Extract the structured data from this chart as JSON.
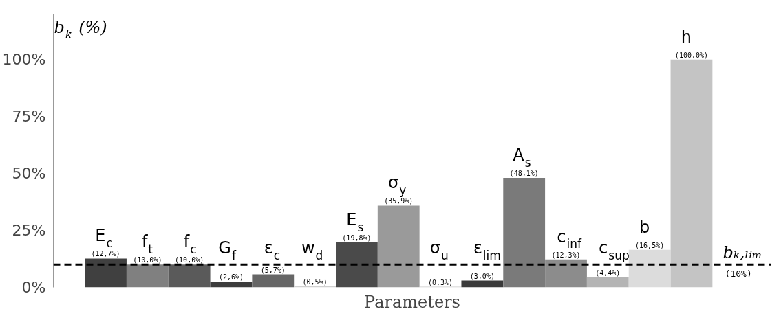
{
  "chart_data": {
    "type": "bar",
    "xlabel": "Parameters",
    "ylabel": "b$_{k}$ (%)",
    "categories": [
      "E$_{c}$",
      "f$_{t}$",
      "f$_{c}$",
      "G$_{f}$",
      "ε$_{c}$",
      "w$_{d}$",
      "E$_{s}$",
      "σ$_{y}$",
      "σ$_{u}$",
      "ε$_{lim}$",
      "A$_{s}$",
      "c$_{inf}$",
      "c$_{sup}$",
      "b",
      "h"
    ],
    "values": [
      12.7,
      10.0,
      10.0,
      2.6,
      5.7,
      0.5,
      19.8,
      35.9,
      0.3,
      3.0,
      48.1,
      12.3,
      4.4,
      16.5,
      100.0
    ],
    "colors": [
      "#404040",
      "#808080",
      "#5a5a5a",
      "#3c3c3c",
      "#666666",
      "#d0d0d0",
      "#4a4a4a",
      "#9a9a9a",
      "#c8c8c8",
      "#3a3a3a",
      "#7a7a7a",
      "#8c8c8c",
      "#b4b4b4",
      "#dcdcdc",
      "#c4c4c4"
    ],
    "value_labels": [
      "(12,7%)",
      "(10,0%)",
      "(10,0%)",
      "(2,6%)",
      "(5,7%)",
      "(0,5%)",
      "(19,8%)",
      "(35,9%)",
      "(0,3%)",
      "(3,0%)",
      "(48,1%)",
      "(12,3%)",
      "(4,4%)",
      "(16,5%)",
      "(100,0%)"
    ],
    "ylim": [
      0,
      120
    ],
    "yticks": [
      {
        "value": 0,
        "label": "0%"
      },
      {
        "value": 25,
        "label": "25%"
      },
      {
        "value": 50,
        "label": "50%"
      },
      {
        "value": 75,
        "label": "75%"
      },
      {
        "value": 100,
        "label": "100%"
      }
    ],
    "ref_lines": [
      {
        "axis": "y",
        "value": 10,
        "label": "bₖ,ₗᵢₘ\n(10%)",
        "color": "#000000",
        "line_style": "dashed"
      }
    ],
    "grid": false
  }
}
